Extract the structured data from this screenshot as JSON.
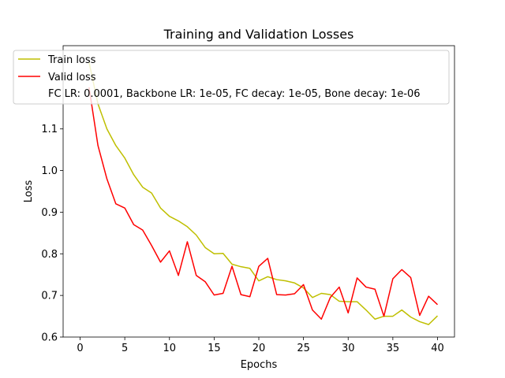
{
  "chart_data": {
    "type": "line",
    "title": "Training and Validation Losses",
    "xlabel": "Epochs",
    "ylabel": "Loss",
    "xlim": [
      -1.9,
      41.9
    ],
    "ylim": [
      0.6,
      1.3
    ],
    "xticks": [
      0,
      5,
      10,
      15,
      20,
      25,
      30,
      35,
      40
    ],
    "yticks": [
      0.6,
      0.7,
      0.8,
      0.9,
      1.0,
      1.1
    ],
    "ytick_labels": [
      "0.6",
      "0.7",
      "0.8",
      "0.9",
      "1.0",
      "1.1"
    ],
    "grid": false,
    "legend_position": "top-left",
    "legend_note": "FC LR: 0.0001, Backbone LR: 1e-05, FC decay: 1e-05, Bone decay: 1e-06",
    "x": [
      1,
      2,
      3,
      4,
      5,
      6,
      7,
      8,
      9,
      10,
      11,
      12,
      13,
      14,
      15,
      16,
      17,
      18,
      19,
      20,
      21,
      22,
      23,
      24,
      25,
      26,
      27,
      28,
      29,
      30,
      31,
      32,
      33,
      34,
      35,
      36,
      37,
      38,
      39,
      40
    ],
    "series": [
      {
        "name": "Train loss",
        "color": "#bfbf00",
        "values": [
          1.26,
          1.16,
          1.1,
          1.06,
          1.03,
          0.99,
          0.96,
          0.946,
          0.91,
          0.89,
          0.879,
          0.865,
          0.845,
          0.815,
          0.8,
          0.801,
          0.775,
          0.769,
          0.765,
          0.735,
          0.745,
          0.738,
          0.735,
          0.73,
          0.718,
          0.695,
          0.705,
          0.702,
          0.686,
          0.685,
          0.685,
          0.665,
          0.643,
          0.65,
          0.65,
          0.665,
          0.648,
          0.637,
          0.63,
          0.651
        ]
      },
      {
        "name": "Valid loss",
        "color": "#ff0000",
        "values": [
          1.2,
          1.06,
          0.98,
          0.92,
          0.91,
          0.87,
          0.857,
          0.82,
          0.78,
          0.807,
          0.748,
          0.829,
          0.748,
          0.733,
          0.701,
          0.705,
          0.77,
          0.702,
          0.697,
          0.77,
          0.789,
          0.702,
          0.701,
          0.704,
          0.726,
          0.665,
          0.643,
          0.695,
          0.72,
          0.658,
          0.742,
          0.72,
          0.715,
          0.65,
          0.74,
          0.762,
          0.743,
          0.652,
          0.698,
          0.678
        ]
      }
    ]
  }
}
